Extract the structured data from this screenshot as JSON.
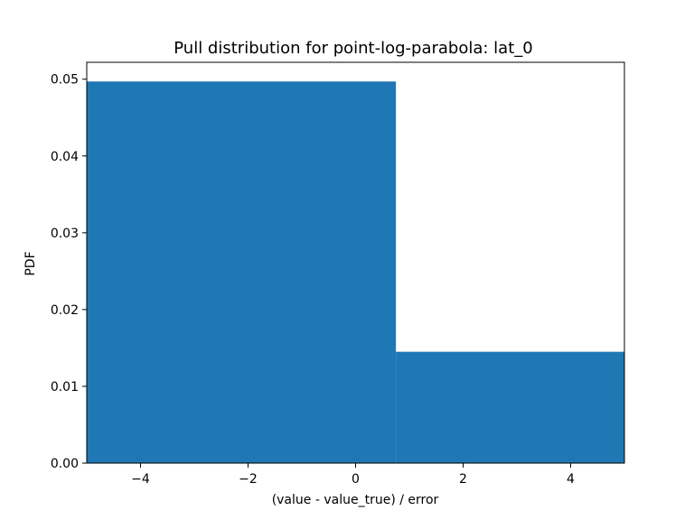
{
  "chart_data": {
    "type": "bar",
    "title": "Pull distribution for point-log-parabola: lat_0",
    "xlabel": "(value - value_true) / error",
    "ylabel": "PDF",
    "xlim": [
      -5.0,
      5.0
    ],
    "ylim": [
      0.0,
      0.0522
    ],
    "grid": false,
    "color": "#1f77b4",
    "bins": [
      {
        "x0": -5.0,
        "x1": 0.75,
        "value": 0.0497
      },
      {
        "x0": 0.75,
        "x1": 5.0,
        "value": 0.0145
      }
    ],
    "xticks": [
      {
        "value": -4,
        "label": "−4"
      },
      {
        "value": -2,
        "label": "−2"
      },
      {
        "value": 0,
        "label": "0"
      },
      {
        "value": 2,
        "label": "2"
      },
      {
        "value": 4,
        "label": "4"
      }
    ],
    "yticks": [
      {
        "value": 0.0,
        "label": "0.00"
      },
      {
        "value": 0.01,
        "label": "0.01"
      },
      {
        "value": 0.02,
        "label": "0.02"
      },
      {
        "value": 0.03,
        "label": "0.03"
      },
      {
        "value": 0.04,
        "label": "0.04"
      },
      {
        "value": 0.05,
        "label": "0.05"
      }
    ]
  }
}
